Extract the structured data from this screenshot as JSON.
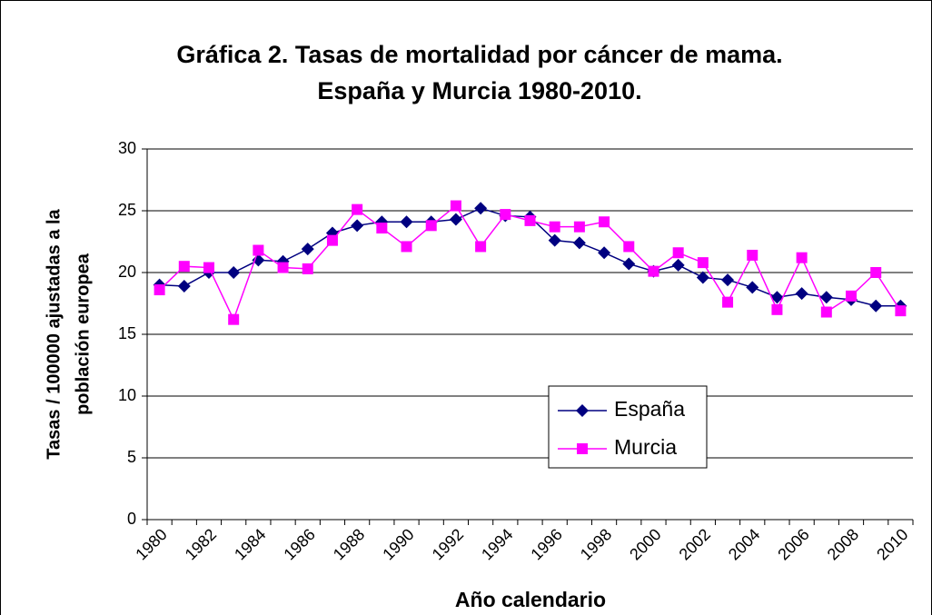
{
  "chart_data": {
    "type": "line",
    "title": [
      "Gráfica 2. Tasas de mortalidad por cáncer de mama.",
      "España y Murcia 1980-2010."
    ],
    "xlabel": "Año calendario",
    "ylabel": [
      "Tasas / 100000 ajustadas a la",
      "población europea"
    ],
    "categories": [
      "1980",
      null,
      "1982",
      null,
      "1984",
      null,
      "1986",
      null,
      "1988",
      null,
      "1990",
      null,
      "1992",
      null,
      "1994",
      null,
      "1996",
      null,
      "1998",
      null,
      "2000",
      null,
      "2002",
      null,
      "2004",
      null,
      "2006",
      null,
      "2008",
      null,
      "2010"
    ],
    "series": [
      {
        "name": "España",
        "color": "#000080",
        "marker": "diamond",
        "values": [
          19.0,
          18.9,
          20.0,
          20.0,
          21.0,
          20.9,
          21.9,
          23.2,
          23.8,
          24.1,
          24.1,
          24.1,
          24.3,
          25.2,
          24.6,
          24.5,
          22.6,
          22.4,
          21.6,
          20.7,
          20.1,
          20.6,
          19.6,
          19.4,
          18.8,
          18.0,
          18.3,
          18.0,
          17.8,
          17.3,
          17.3
        ]
      },
      {
        "name": "Murcia",
        "color": "#ff00ff",
        "marker": "square",
        "values": [
          18.6,
          20.5,
          20.4,
          16.2,
          21.8,
          20.4,
          20.3,
          22.6,
          25.1,
          23.6,
          22.1,
          23.8,
          25.4,
          22.1,
          24.7,
          24.2,
          23.7,
          23.7,
          24.1,
          22.1,
          20.1,
          21.6,
          20.8,
          17.6,
          21.4,
          17.0,
          21.2,
          16.8,
          18.1,
          20.0,
          16.9
        ]
      }
    ],
    "ylim": [
      0,
      30
    ],
    "yticks": [
      0,
      5,
      10,
      15,
      20,
      25,
      30
    ],
    "grid": true
  }
}
